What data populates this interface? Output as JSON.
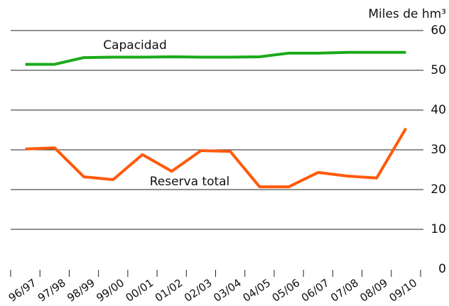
{
  "chart_data": {
    "type": "line",
    "y_axis_label": "Miles de hm³",
    "categories": [
      "96/97",
      "97/98",
      "98/99",
      "99/00",
      "00/01",
      "01/02",
      "02/03",
      "03/04",
      "04/05",
      "05/06",
      "06/07",
      "07/08",
      "08/09",
      "09/10"
    ],
    "series": [
      {
        "name": "Capacidad",
        "color": "#1aaa1a",
        "values": [
          51.5,
          51.5,
          53.2,
          53.3,
          53.3,
          53.4,
          53.3,
          53.3,
          53.4,
          54.3,
          54.3,
          54.5,
          54.5,
          54.5
        ]
      },
      {
        "name": "Reserva total",
        "color": "#ff5a0a",
        "values": [
          30.2,
          30.5,
          23.2,
          22.5,
          28.8,
          24.6,
          29.8,
          29.6,
          20.7,
          20.7,
          24.3,
          23.4,
          22.9,
          35.4
        ]
      }
    ],
    "ylim": [
      0,
      60
    ],
    "yticks": [
      0,
      10,
      20,
      30,
      40,
      50,
      60
    ],
    "grid": true
  }
}
